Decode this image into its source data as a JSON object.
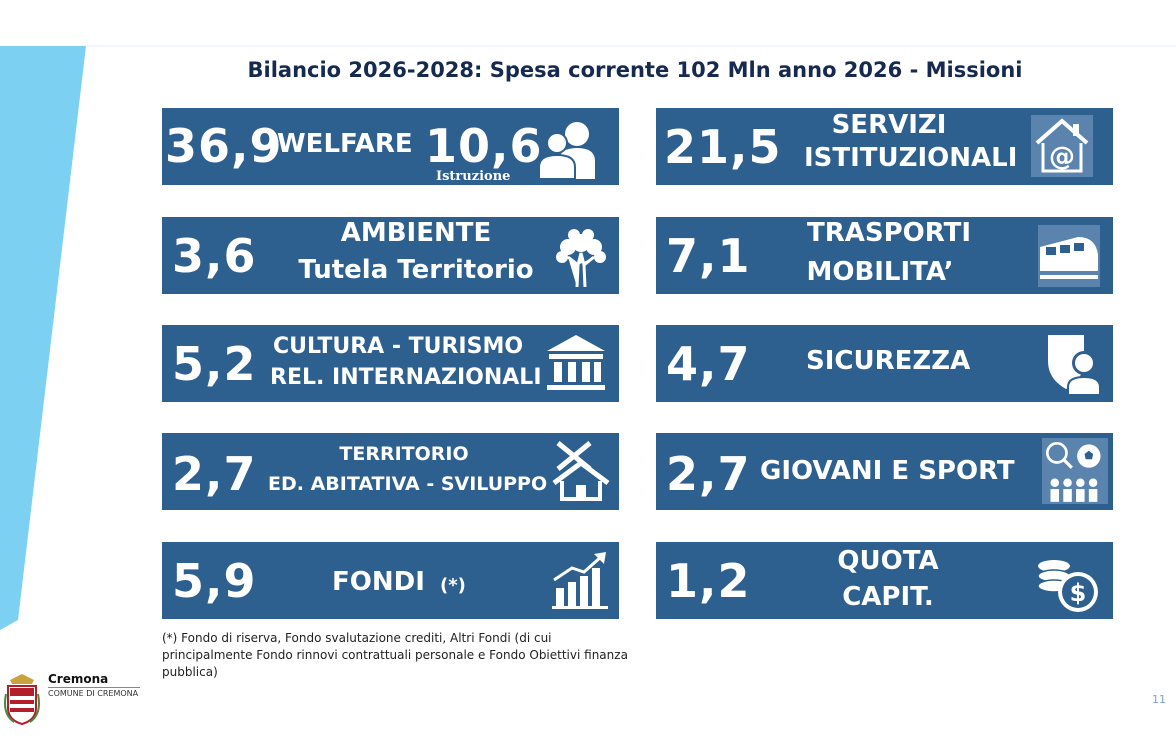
{
  "title": "Bilancio 2026-2028: Spesa corrente 102 Mln anno 2026 - Missioni",
  "missions": [
    {
      "value": "36,9",
      "label": "WELFARE",
      "value2": "10,6",
      "sublabel": "Istruzione",
      "icon": "people-icon"
    },
    {
      "value": "21,5",
      "label1": "SERVIZI",
      "label2": "ISTITUZIONALI",
      "icon": "at-house-icon"
    },
    {
      "value": "3,6",
      "label1": "AMBIENTE",
      "label2": "Tutela Territorio",
      "icon": "tree-icon"
    },
    {
      "value": "7,1",
      "label1": "TRASPORTI",
      "label2": "MOBILITA’",
      "icon": "train-icon"
    },
    {
      "value": "5,2",
      "label1": "CULTURA - TURISMO",
      "label2": "REL. INTERNAZIONALI",
      "icon": "institution-icon"
    },
    {
      "value": "4,7",
      "label": "SICUREZZA",
      "icon": "shield-person-icon"
    },
    {
      "value": "2,7",
      "label1": "TERRITORIO",
      "label2": "ED. ABITATIVA - SVILUPPO",
      "icon": "house-tools-icon"
    },
    {
      "value": "2,7",
      "label": "GIOVANI E SPORT",
      "icon": "sport-icon"
    },
    {
      "value": "5,9",
      "label": "FONDI",
      "label_note": "(*)",
      "icon": "growth-chart-icon"
    },
    {
      "value": "1,2",
      "label1": "QUOTA",
      "label2": "CAPIT.",
      "icon": "coins-icon"
    }
  ],
  "footnote": "(*) Fondo di riserva, Fondo svalutazione crediti, Altri Fondi (di cui principalmente Fondo rinnovi contrattuali personale e Fondo Obiettivi finanza pubblica)",
  "logo": {
    "name": "Cremona",
    "subtitle": "COMUNE DI CREMONA"
  },
  "page_number": "11",
  "colors": {
    "box": "#2d5f8f",
    "title": "#16294f",
    "stripe": "#7cd1f2",
    "page_number": "#7f9fd0"
  }
}
